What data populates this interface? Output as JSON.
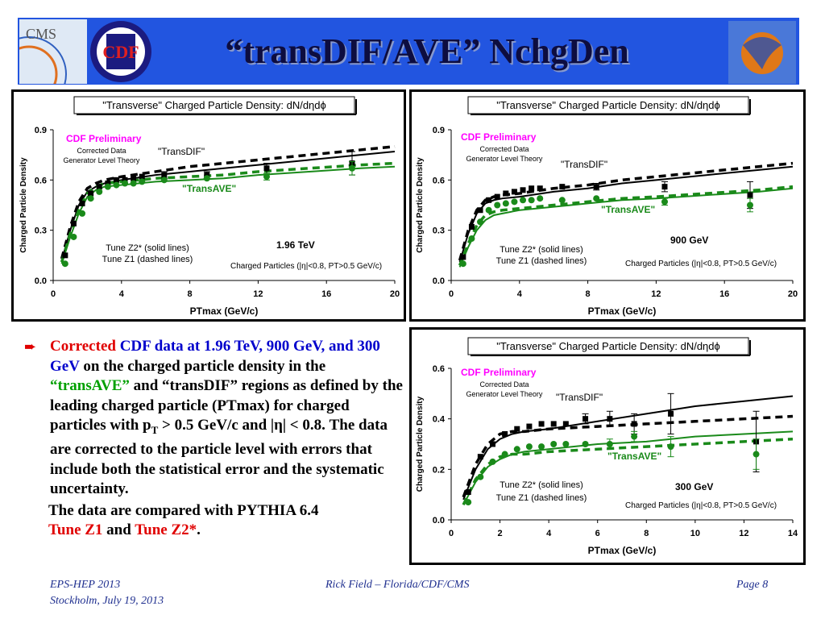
{
  "header": {
    "title": "“transDIF/AVE” NchgDen",
    "logos": {
      "cms": "CMS",
      "cdf": "CDF"
    }
  },
  "colors": {
    "header_bg": "#2255e0",
    "black_series": "#000000",
    "green_series": "#1a8a1a",
    "magenta": "#ff00ff",
    "text_red": "#e00000",
    "text_blue": "#0000cc"
  },
  "text_block": {
    "bullet_icon": "arrow-right-icon",
    "p1_red": "Corrected",
    "p1_blue": "CDF data at 1.96 TeV, 900 GeV, and 300 GeV",
    "p1_a": "on the charged particle density in the",
    "p1_green": "“transAVE”",
    "p1_b": "and “transDIF” regions as defined by the leading charged particle (PTmax) for charged particles with p",
    "p1_sub": "T",
    "p1_c": "> 0.5 GeV/c and |η| < 0.8. The data are corrected to the particle level with errors that include both the statistical error and the systematic uncertainty.",
    "p2_a": "The data are compared with PYTHIA 6.4",
    "p2_red1": "Tune Z1",
    "p2_b": "and",
    "p2_red2": "Tune Z2*",
    "p2_c": "."
  },
  "footer": {
    "left1": "EPS-HEP 2013",
    "left2": "Stockholm, July 19, 2013",
    "center": "Rick Field – Florida/CDF/CMS",
    "right": "Page 8"
  },
  "chart_data": [
    {
      "type": "scatter",
      "title": "\"Transverse\" Charged Particle Density: dN/dηdϕ",
      "xlabel": "PTmax  (GeV/c)",
      "ylabel": "Charged Particle Density",
      "xlim": [
        0,
        20
      ],
      "ylim": [
        0,
        0.9
      ],
      "xticks": [
        "0",
        "4",
        "8",
        "12",
        "16",
        "20"
      ],
      "yticks": [
        "0.0",
        "0.3",
        "0.6",
        "0.9"
      ],
      "annotations": {
        "preliminary": "CDF Preliminary",
        "corrected": "Corrected Data",
        "generator": "Generator Level Theory",
        "transdif": "\"TransDIF\"",
        "transave": "\"TransAVE\"",
        "tunez2": "Tune Z2* (solid lines)",
        "tunez1": "Tune Z1 (dashed lines)",
        "energy": "1.96 TeV",
        "cuts": "Charged Particles (|η|<0.8, PT>0.5 GeV/c)"
      },
      "series": [
        {
          "name": "\"TransDIF\"",
          "x": [
            0.7,
            1.2,
            1.7,
            2.2,
            2.7,
            3.2,
            3.7,
            4.2,
            4.7,
            5.2,
            6.5,
            9.0,
            12.5,
            17.5
          ],
          "y": [
            0.15,
            0.34,
            0.46,
            0.52,
            0.56,
            0.58,
            0.6,
            0.6,
            0.61,
            0.62,
            0.63,
            0.63,
            0.67,
            0.7
          ],
          "err": [
            0.01,
            0.01,
            0.01,
            0.01,
            0.01,
            0.01,
            0.01,
            0.01,
            0.01,
            0.01,
            0.02,
            0.02,
            0.03,
            0.07
          ]
        },
        {
          "name": "\"TransAVE\"",
          "x": [
            0.7,
            1.2,
            1.7,
            2.2,
            2.7,
            3.2,
            3.7,
            4.2,
            4.7,
            5.2,
            6.5,
            9.0,
            12.5,
            17.5
          ],
          "y": [
            0.1,
            0.26,
            0.4,
            0.49,
            0.53,
            0.56,
            0.57,
            0.58,
            0.58,
            0.59,
            0.6,
            0.61,
            0.62,
            0.67
          ],
          "err": [
            0.01,
            0.01,
            0.01,
            0.01,
            0.01,
            0.01,
            0.01,
            0.01,
            0.01,
            0.01,
            0.01,
            0.01,
            0.02,
            0.04
          ]
        }
      ],
      "theory": [
        {
          "name": "Tune Z2* transDIF",
          "x": [
            0.5,
            1.0,
            1.5,
            2.0,
            2.5,
            3.0,
            4.0,
            6.0,
            8.0,
            10.0,
            12.0,
            15.0,
            18.0,
            20.0
          ],
          "y": [
            0.12,
            0.3,
            0.45,
            0.53,
            0.56,
            0.58,
            0.6,
            0.63,
            0.65,
            0.67,
            0.69,
            0.72,
            0.75,
            0.77
          ]
        },
        {
          "name": "Tune Z1 transDIF",
          "x": [
            0.5,
            1.0,
            1.5,
            2.0,
            2.5,
            3.0,
            4.0,
            6.0,
            8.0,
            10.0,
            12.0,
            15.0,
            18.0,
            20.0
          ],
          "y": [
            0.13,
            0.32,
            0.47,
            0.55,
            0.58,
            0.6,
            0.62,
            0.65,
            0.68,
            0.7,
            0.72,
            0.75,
            0.78,
            0.8
          ]
        },
        {
          "name": "Tune Z2* transAVE",
          "x": [
            0.5,
            1.0,
            1.5,
            2.0,
            2.5,
            3.0,
            4.0,
            6.0,
            8.0,
            10.0,
            12.0,
            15.0,
            18.0,
            20.0
          ],
          "y": [
            0.1,
            0.26,
            0.4,
            0.5,
            0.54,
            0.56,
            0.57,
            0.59,
            0.6,
            0.61,
            0.63,
            0.65,
            0.67,
            0.68
          ]
        },
        {
          "name": "Tune Z1 transAVE",
          "x": [
            0.5,
            1.0,
            1.5,
            2.0,
            2.5,
            3.0,
            4.0,
            6.0,
            8.0,
            10.0,
            12.0,
            15.0,
            18.0,
            20.0
          ],
          "y": [
            0.11,
            0.28,
            0.42,
            0.52,
            0.56,
            0.58,
            0.59,
            0.61,
            0.62,
            0.63,
            0.65,
            0.67,
            0.69,
            0.7
          ]
        }
      ]
    },
    {
      "type": "scatter",
      "title": "\"Transverse\" Charged Particle Density: dN/dηdϕ",
      "xlabel": "PTmax  (GeV/c)",
      "ylabel": "Charged Particle Density",
      "xlim": [
        0,
        20
      ],
      "ylim": [
        0,
        0.9
      ],
      "xticks": [
        "0",
        "4",
        "8",
        "12",
        "16",
        "20"
      ],
      "yticks": [
        "0.0",
        "0.3",
        "0.6",
        "0.9"
      ],
      "annotations": {
        "preliminary": "CDF Preliminary",
        "corrected": "Corrected Data",
        "generator": "Generator Level Theory",
        "transdif": "\"TransDIF\"",
        "transave": "\"TransAVE\"",
        "tunez2": "Tune Z2* (solid lines)",
        "tunez1": "Tune Z1 (dashed lines)",
        "energy": "900 GeV",
        "cuts": "Charged Particles (|η|<0.8, PT>0.5 GeV/c)"
      },
      "series": [
        {
          "name": "\"TransDIF\"",
          "x": [
            0.7,
            1.2,
            1.7,
            2.2,
            2.7,
            3.2,
            3.7,
            4.2,
            4.7,
            5.2,
            6.5,
            8.5,
            12.5,
            17.5
          ],
          "y": [
            0.14,
            0.32,
            0.42,
            0.48,
            0.5,
            0.52,
            0.53,
            0.54,
            0.55,
            0.55,
            0.56,
            0.56,
            0.56,
            0.51
          ],
          "err": [
            0.01,
            0.01,
            0.01,
            0.01,
            0.01,
            0.01,
            0.01,
            0.01,
            0.01,
            0.01,
            0.01,
            0.02,
            0.03,
            0.08
          ]
        },
        {
          "name": "\"TransAVE\"",
          "x": [
            0.7,
            1.2,
            1.7,
            2.2,
            2.7,
            3.2,
            3.7,
            4.2,
            4.7,
            5.2,
            6.5,
            8.5,
            12.5,
            17.5
          ],
          "y": [
            0.1,
            0.25,
            0.35,
            0.42,
            0.45,
            0.46,
            0.47,
            0.48,
            0.48,
            0.49,
            0.48,
            0.49,
            0.47,
            0.45
          ],
          "err": [
            0.01,
            0.01,
            0.01,
            0.01,
            0.01,
            0.01,
            0.01,
            0.01,
            0.01,
            0.01,
            0.01,
            0.01,
            0.02,
            0.04
          ]
        }
      ],
      "theory": [
        {
          "name": "Tune Z2* transDIF",
          "x": [
            0.5,
            1.0,
            1.5,
            2.0,
            2.5,
            3.0,
            4.0,
            6.0,
            8.0,
            10.0,
            12.0,
            15.0,
            18.0,
            20.0
          ],
          "y": [
            0.11,
            0.28,
            0.4,
            0.46,
            0.48,
            0.49,
            0.5,
            0.53,
            0.55,
            0.58,
            0.6,
            0.63,
            0.66,
            0.68
          ]
        },
        {
          "name": "Tune Z1 transDIF",
          "x": [
            0.5,
            1.0,
            1.5,
            2.0,
            2.5,
            3.0,
            4.0,
            6.0,
            8.0,
            10.0,
            12.0,
            15.0,
            18.0,
            20.0
          ],
          "y": [
            0.12,
            0.3,
            0.42,
            0.48,
            0.5,
            0.51,
            0.52,
            0.55,
            0.57,
            0.6,
            0.62,
            0.65,
            0.68,
            0.7
          ]
        },
        {
          "name": "Tune Z2* transAVE",
          "x": [
            0.5,
            1.0,
            1.5,
            2.0,
            2.5,
            3.0,
            4.0,
            6.0,
            8.0,
            10.0,
            12.0,
            15.0,
            18.0,
            20.0
          ],
          "y": [
            0.08,
            0.2,
            0.3,
            0.36,
            0.39,
            0.4,
            0.42,
            0.44,
            0.46,
            0.48,
            0.49,
            0.51,
            0.53,
            0.55
          ]
        },
        {
          "name": "Tune Z1 transAVE",
          "x": [
            0.5,
            1.0,
            1.5,
            2.0,
            2.5,
            3.0,
            4.0,
            6.0,
            8.0,
            10.0,
            12.0,
            15.0,
            18.0,
            20.0
          ],
          "y": [
            0.09,
            0.22,
            0.33,
            0.39,
            0.41,
            0.42,
            0.43,
            0.45,
            0.47,
            0.49,
            0.5,
            0.52,
            0.54,
            0.56
          ]
        }
      ]
    },
    {
      "type": "scatter",
      "title": "\"Transverse\" Charged Particle Density: dN/dηdϕ",
      "xlabel": "PTmax  (GeV/c)",
      "ylabel": "Charged Particle Density",
      "xlim": [
        0,
        14
      ],
      "ylim": [
        0,
        0.6
      ],
      "xticks": [
        "0",
        "2",
        "4",
        "6",
        "8",
        "10",
        "12",
        "14"
      ],
      "yticks": [
        "0.0",
        "0.2",
        "0.4",
        "0.6"
      ],
      "annotations": {
        "preliminary": "CDF Preliminary",
        "corrected": "Corrected Data",
        "generator": "Generator Level Theory",
        "transdif": "\"TransDIF\"",
        "transave": "\"TransAVE\"",
        "tunez2": "Tune Z2* (solid lines)",
        "tunez1": "Tune Z1 (dashed lines)",
        "energy": "300 GeV",
        "cuts": "Charged Particles (|η|<0.8, PT>0.5 GeV/c)"
      },
      "series": [
        {
          "name": "\"TransDIF\"",
          "x": [
            0.7,
            1.2,
            1.7,
            2.2,
            2.7,
            3.2,
            3.7,
            4.2,
            4.7,
            5.5,
            6.5,
            7.5,
            9.0,
            12.5
          ],
          "y": [
            0.11,
            0.25,
            0.3,
            0.34,
            0.36,
            0.37,
            0.38,
            0.38,
            0.38,
            0.4,
            0.4,
            0.38,
            0.42,
            0.31
          ],
          "err": [
            0.01,
            0.01,
            0.01,
            0.01,
            0.01,
            0.01,
            0.01,
            0.01,
            0.01,
            0.02,
            0.03,
            0.04,
            0.08,
            0.12
          ]
        },
        {
          "name": "\"TransAVE\"",
          "x": [
            0.7,
            1.2,
            1.7,
            2.2,
            2.7,
            3.2,
            3.7,
            4.2,
            4.7,
            5.5,
            6.5,
            7.5,
            9.0,
            12.5
          ],
          "y": [
            0.07,
            0.17,
            0.23,
            0.26,
            0.28,
            0.29,
            0.29,
            0.3,
            0.3,
            0.3,
            0.3,
            0.33,
            0.29,
            0.26
          ],
          "err": [
            0.01,
            0.01,
            0.01,
            0.01,
            0.01,
            0.01,
            0.01,
            0.01,
            0.01,
            0.01,
            0.02,
            0.02,
            0.04,
            0.06
          ]
        }
      ],
      "theory": [
        {
          "name": "Tune Z2* transDIF",
          "x": [
            0.5,
            1.0,
            1.5,
            2.0,
            2.5,
            3.0,
            4.0,
            6.0,
            8.0,
            10.0,
            12.0,
            14.0
          ],
          "y": [
            0.08,
            0.2,
            0.28,
            0.32,
            0.34,
            0.35,
            0.36,
            0.39,
            0.42,
            0.45,
            0.47,
            0.49
          ]
        },
        {
          "name": "Tune Z1 transDIF",
          "x": [
            0.5,
            1.0,
            1.5,
            2.0,
            2.5,
            3.0,
            4.0,
            6.0,
            8.0,
            10.0,
            12.0,
            14.0
          ],
          "y": [
            0.09,
            0.22,
            0.3,
            0.34,
            0.35,
            0.35,
            0.36,
            0.37,
            0.38,
            0.39,
            0.4,
            0.41
          ]
        },
        {
          "name": "Tune Z2* transAVE",
          "x": [
            0.5,
            1.0,
            1.5,
            2.0,
            2.5,
            3.0,
            4.0,
            6.0,
            8.0,
            10.0,
            12.0,
            14.0
          ],
          "y": [
            0.06,
            0.15,
            0.21,
            0.24,
            0.26,
            0.27,
            0.28,
            0.3,
            0.31,
            0.33,
            0.34,
            0.35
          ]
        },
        {
          "name": "Tune Z1 transAVE",
          "x": [
            0.5,
            1.0,
            1.5,
            2.0,
            2.5,
            3.0,
            4.0,
            6.0,
            8.0,
            10.0,
            12.0,
            14.0
          ],
          "y": [
            0.06,
            0.16,
            0.22,
            0.25,
            0.26,
            0.26,
            0.27,
            0.28,
            0.29,
            0.3,
            0.31,
            0.32
          ]
        }
      ]
    }
  ]
}
